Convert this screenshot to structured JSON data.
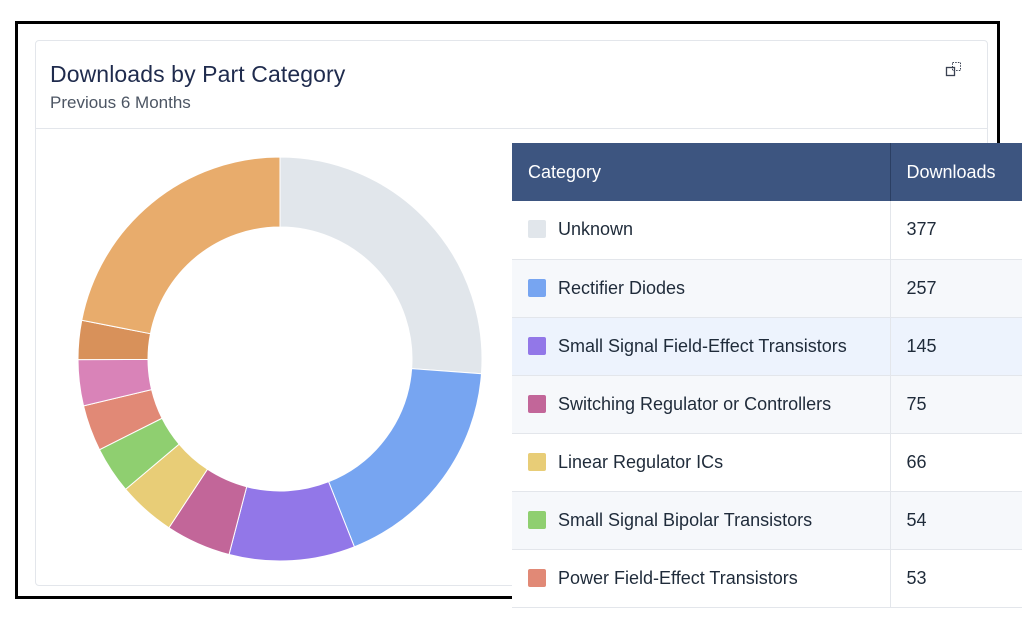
{
  "card": {
    "title": "Downloads by Part Category",
    "subtitle": "Previous 6 Months",
    "expand_icon": "expand-icon"
  },
  "table": {
    "headers": [
      "Category",
      "Downloads"
    ],
    "rows": [
      {
        "category": "Unknown",
        "downloads": "377",
        "color": "#e1e6eb"
      },
      {
        "category": "Rectifier Diodes",
        "downloads": "257",
        "color": "#77a5f1"
      },
      {
        "category": "Small Signal Field-Effect Transistors",
        "downloads": "145",
        "color": "#9277e8"
      },
      {
        "category": "Switching Regulator or Controllers",
        "downloads": "75",
        "color": "#c26699"
      },
      {
        "category": "Linear Regulator ICs",
        "downloads": "66",
        "color": "#e8cd77"
      },
      {
        "category": "Small Signal Bipolar Transistors",
        "downloads": "54",
        "color": "#8fcf70"
      },
      {
        "category": "Power Field-Effect Transistors",
        "downloads": "53",
        "color": "#e18976"
      }
    ]
  },
  "chart_data": {
    "type": "pie",
    "donut": true,
    "title": "Downloads by Part Category",
    "subtitle": "Previous 6 Months",
    "slices": [
      {
        "label": "Unknown",
        "value": 377,
        "color": "#e1e6eb"
      },
      {
        "label": "Rectifier Diodes",
        "value": 257,
        "color": "#77a5f1"
      },
      {
        "label": "Small Signal Field-Effect Transistors",
        "value": 145,
        "color": "#9277e8"
      },
      {
        "label": "Switching Regulator or Controllers",
        "value": 75,
        "color": "#c26699"
      },
      {
        "label": "Linear Regulator ICs",
        "value": 66,
        "color": "#e8cd77"
      },
      {
        "label": "Small Signal Bipolar Transistors",
        "value": 54,
        "color": "#8fcf70"
      },
      {
        "label": "Power Field-Effect Transistors",
        "value": 53,
        "color": "#e18976"
      },
      {
        "value": 53,
        "color": "#d983b8"
      },
      {
        "value": 45,
        "color": "#d8915a"
      },
      {
        "value": 316,
        "color": "#e8ac6c"
      }
    ]
  }
}
